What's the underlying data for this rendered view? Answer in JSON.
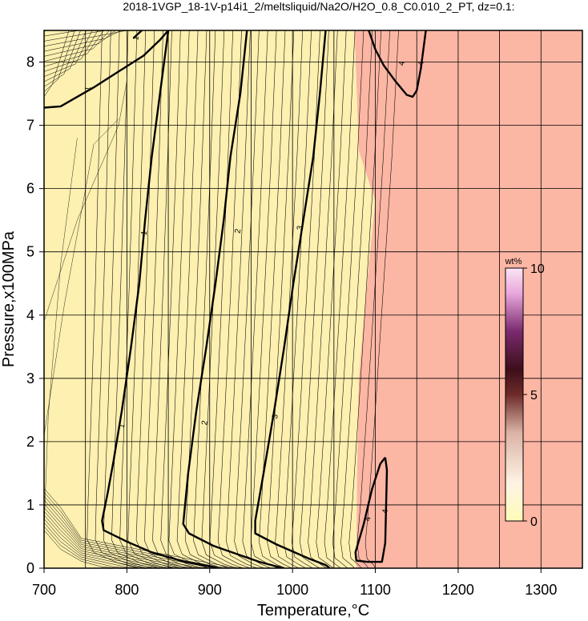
{
  "chart_data": {
    "type": "contour",
    "title": "2018-1VGP_18-1V-p14i1_2/meltsliquid/Na2O/H2O_0.8_C0.010_2_PT, dz=0.1:",
    "xlabel": "Temperature,°C",
    "ylabel": "Pressure,x100MPa",
    "xlim": [
      700,
      1350
    ],
    "ylim": [
      0,
      8.5
    ],
    "x_ticks": [
      700,
      800,
      900,
      1000,
      1100,
      1200,
      1300
    ],
    "y_ticks": [
      0,
      1,
      2,
      3,
      4,
      5,
      6,
      7,
      8
    ],
    "grid": true,
    "fill_zones": [
      {
        "name": "low",
        "color": "#fdf0b0"
      },
      {
        "name": "high",
        "color": "#fcb6a4"
      }
    ],
    "major_contours": [
      {
        "level": "1",
        "points": [
          [
            700,
            7.28
          ],
          [
            720,
            7.3
          ],
          [
            760,
            7.6
          ],
          [
            790,
            7.85
          ],
          [
            820,
            8.1
          ],
          [
            840,
            8.35
          ],
          [
            850,
            8.5
          ]
        ],
        "labels": [
          [
            752,
            7.58
          ]
        ]
      },
      {
        "level": "1",
        "points": [
          [
            850,
            8.5
          ],
          [
            840,
            7.5
          ],
          [
            830,
            6.5
          ],
          [
            822,
            5.5
          ],
          [
            815,
            4.5
          ],
          [
            805,
            3.5
          ],
          [
            794,
            2.5
          ],
          [
            784,
            1.7
          ],
          [
            777,
            1.2
          ],
          [
            770,
            0.75
          ],
          [
            772,
            0.6
          ],
          [
            800,
            0.42
          ],
          [
            830,
            0.25
          ],
          [
            870,
            0.1
          ],
          [
            900,
            0.03
          ],
          [
            910,
            0
          ]
        ],
        "labels": [
          [
            820,
            5.3
          ],
          [
            793,
            2.25
          ]
        ]
      },
      {
        "level": "1",
        "points": [
          [
            818,
            8.5
          ],
          [
            808,
            8.38
          ]
        ],
        "labels": [
          [
            810,
            8.38
          ]
        ]
      },
      {
        "level": "2",
        "points": [
          [
            945,
            8.5
          ],
          [
            937,
            7.5
          ],
          [
            925,
            6.5
          ],
          [
            917,
            5.5
          ],
          [
            907,
            4.5
          ],
          [
            896,
            3.5
          ],
          [
            884,
            2.5
          ],
          [
            874,
            1.5
          ],
          [
            868,
            0.7
          ],
          [
            875,
            0.55
          ],
          [
            905,
            0.35
          ],
          [
            960,
            0.1
          ],
          [
            980,
            0.03
          ],
          [
            990,
            0
          ]
        ],
        "labels": [
          [
            933,
            5.33
          ],
          [
            893,
            2.3
          ]
        ]
      },
      {
        "level": "3",
        "points": [
          [
            1040,
            8.5
          ],
          [
            1033,
            7.5
          ],
          [
            1025,
            6.5
          ],
          [
            1013,
            5.5
          ],
          [
            1001,
            4.5
          ],
          [
            990,
            3.5
          ],
          [
            978,
            2.5
          ],
          [
            965,
            1.5
          ],
          [
            955,
            0.75
          ],
          [
            955,
            0.55
          ],
          [
            980,
            0.38
          ],
          [
            1020,
            0.15
          ],
          [
            1040,
            0.05
          ],
          [
            1045,
            0
          ]
        ],
        "labels": [
          [
            1008,
            5.38
          ],
          [
            978,
            2.4
          ]
        ]
      },
      {
        "level": "4",
        "points": [
          [
            1092,
            8.5
          ],
          [
            1100,
            8.2
          ],
          [
            1110,
            7.95
          ],
          [
            1124,
            7.7
          ],
          [
            1138,
            7.48
          ],
          [
            1145,
            7.45
          ],
          [
            1150,
            7.55
          ],
          [
            1155,
            7.9
          ],
          [
            1161,
            8.5
          ]
        ],
        "labels": [
          [
            1131,
            7.98
          ],
          [
            1154,
            7.98
          ]
        ]
      },
      {
        "level": "4",
        "points": [
          [
            1112,
            1.75
          ],
          [
            1106,
            1.65
          ],
          [
            1096,
            1.25
          ],
          [
            1086,
            0.7
          ],
          [
            1076,
            0.25
          ],
          [
            1077,
            0.12
          ],
          [
            1090,
            0.1
          ],
          [
            1108,
            0.1
          ],
          [
            1112,
            0.4
          ],
          [
            1113,
            1.0
          ],
          [
            1114,
            1.55
          ],
          [
            1112,
            1.75
          ]
        ],
        "labels": [
          [
            1090,
            0.78
          ],
          [
            1111,
            0.9
          ]
        ]
      }
    ],
    "colorbar": {
      "unit": "wt%",
      "min": 0,
      "max": 10,
      "ticks": [
        0,
        5,
        10
      ]
    }
  }
}
